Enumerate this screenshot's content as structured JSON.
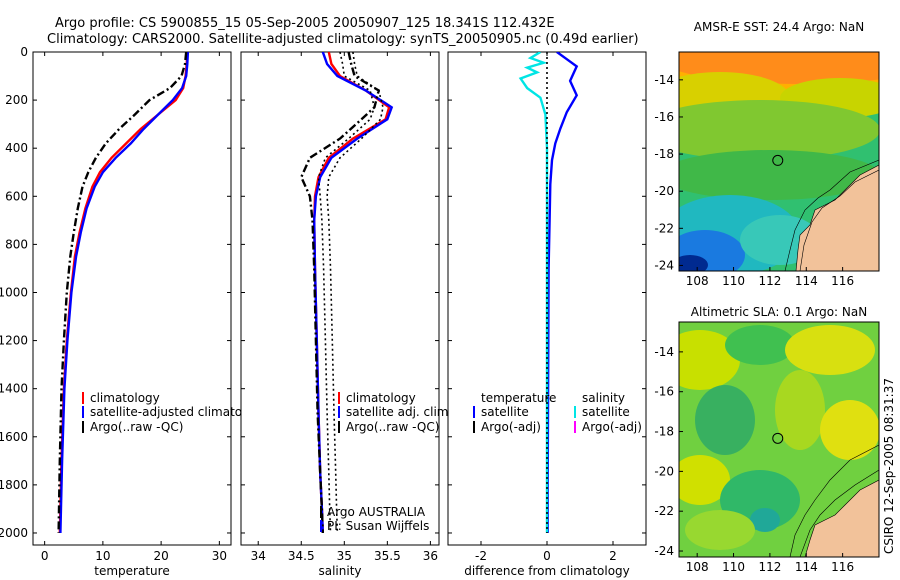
{
  "header": {
    "line1": "Argo profile: CS 5900855_15 05-Sep-2005 20050907_125 18.341S 112.432E",
    "line2": "Climatology: CARS2000. Satellite-adjusted climatology: synTS_20050905.nc (0.49d earlier)"
  },
  "colors": {
    "climatology": "#ff0000",
    "satellite": "#0000ff",
    "argo": "#000000",
    "salinity_satellite": "#00e5e5",
    "salinity_argo_adj": "#ff00ff",
    "land": "#f2c29a"
  },
  "chart_data": [
    {
      "type": "line",
      "id": "temperature_profile",
      "xlabel": "temperature",
      "ylabel": "",
      "xlim": [
        -2,
        32
      ],
      "ylim": [
        2050,
        0
      ],
      "y_reversed": true,
      "xticks": [
        "0",
        "10",
        "20",
        "30"
      ],
      "yticks": [
        "0",
        "200",
        "400",
        "600",
        "800",
        "1000",
        "1200",
        "1400",
        "1600",
        "1800",
        "2000"
      ],
      "xtick_values": [
        0,
        10,
        20,
        30
      ],
      "ytick_values": [
        0,
        200,
        400,
        600,
        800,
        1000,
        1200,
        1400,
        1600,
        1800,
        2000
      ],
      "legend": [
        "climatology",
        "satellite-adjusted climatolog",
        "Argo(..raw -QC)"
      ],
      "series": [
        {
          "name": "climatology",
          "style": "solid",
          "color": "#ff0000",
          "x": [
            24.5,
            24.4,
            24.2,
            23.8,
            22.5,
            19.5,
            16.5,
            14.0,
            11.5,
            9.5,
            8.2,
            7.0,
            6.0,
            5.2,
            4.5,
            3.8,
            3.3,
            2.9,
            2.6
          ],
          "y": [
            0,
            50,
            100,
            150,
            200,
            260,
            320,
            380,
            440,
            500,
            560,
            650,
            750,
            850,
            1000,
            1200,
            1400,
            1700,
            2000
          ]
        },
        {
          "name": "satellite-adjusted climatology",
          "style": "solid",
          "color": "#0000ff",
          "x": [
            24.6,
            24.5,
            24.3,
            23.6,
            22.0,
            19.5,
            17.0,
            14.8,
            12.2,
            10.0,
            8.6,
            7.2,
            6.2,
            5.4,
            4.6,
            3.9,
            3.4,
            3.0,
            2.7
          ],
          "y": [
            0,
            50,
            100,
            150,
            200,
            260,
            320,
            380,
            440,
            500,
            560,
            650,
            750,
            850,
            1000,
            1200,
            1400,
            1700,
            2000
          ]
        },
        {
          "name": "Argo(..raw -QC)",
          "style": "dashdot",
          "color": "#000000",
          "x": [
            24.3,
            24.1,
            23.5,
            21.5,
            18.0,
            15.5,
            12.8,
            10.5,
            8.8,
            7.5,
            6.5,
            5.7,
            5.0,
            4.4,
            3.8,
            3.3,
            2.9,
            2.6,
            2.4
          ],
          "y": [
            0,
            50,
            100,
            150,
            200,
            260,
            320,
            380,
            440,
            500,
            560,
            650,
            750,
            850,
            1000,
            1200,
            1400,
            1700,
            2000
          ]
        }
      ]
    },
    {
      "type": "line",
      "id": "salinity_profile",
      "xlabel": "salinity",
      "xlim": [
        33.8,
        36.1
      ],
      "ylim": [
        2050,
        0
      ],
      "y_reversed": true,
      "xticks": [
        "34",
        "34.5",
        "35",
        "35.5",
        "36"
      ],
      "xtick_values": [
        34,
        34.5,
        35,
        35.5,
        36
      ],
      "legend": [
        "climatology",
        "satellite adj. clim.",
        "Argo(..raw -QC)"
      ],
      "annotations": [
        "Argo AUSTRALIA",
        "PI: Susan Wijffels"
      ],
      "series": [
        {
          "name": "climatology",
          "style": "solid",
          "color": "#ff0000",
          "x": [
            34.82,
            34.85,
            34.95,
            35.25,
            35.52,
            35.48,
            35.1,
            34.82,
            34.7,
            34.66,
            34.65,
            34.66,
            34.68,
            34.7,
            34.72,
            34.74,
            34.75
          ],
          "y": [
            0,
            50,
            100,
            160,
            230,
            280,
            360,
            440,
            520,
            600,
            700,
            900,
            1200,
            1500,
            1750,
            1900,
            2000
          ]
        },
        {
          "name": "satellite adj. clim.",
          "style": "solid",
          "color": "#0000ff",
          "x": [
            34.75,
            34.8,
            34.92,
            35.25,
            35.55,
            35.5,
            35.15,
            34.85,
            34.72,
            34.67,
            34.65,
            34.66,
            34.68,
            34.7,
            34.72,
            34.74,
            34.75
          ],
          "y": [
            0,
            50,
            100,
            160,
            230,
            280,
            360,
            440,
            520,
            600,
            700,
            900,
            1200,
            1500,
            1750,
            1900,
            2000
          ]
        },
        {
          "name": "Argo(..raw -QC)",
          "style": "dashdot",
          "color": "#000000",
          "x": [
            35.05,
            35.08,
            35.12,
            35.4,
            35.35,
            35.2,
            34.95,
            34.6,
            34.5,
            34.6,
            34.63,
            34.65,
            34.67,
            34.69,
            34.72,
            34.74,
            34.75
          ],
          "y": [
            0,
            50,
            100,
            160,
            230,
            280,
            360,
            440,
            520,
            600,
            700,
            900,
            1200,
            1500,
            1750,
            1900,
            2000
          ]
        },
        {
          "name": "",
          "style": "dotted",
          "color": "#000000",
          "x": [
            35.1,
            35.12,
            35.15,
            35.4,
            35.45,
            35.42,
            35.2,
            34.95,
            34.82,
            34.8,
            34.82,
            34.84,
            34.86,
            34.88,
            34.9,
            34.91,
            34.92
          ],
          "y": [
            0,
            50,
            100,
            160,
            230,
            280,
            360,
            440,
            520,
            600,
            700,
            900,
            1200,
            1500,
            1750,
            1900,
            2000
          ]
        },
        {
          "name": "",
          "style": "dotted",
          "color": "#000000",
          "x": [
            34.95,
            34.98,
            35.0,
            35.3,
            35.35,
            35.3,
            35.05,
            34.78,
            34.7,
            34.72,
            34.74,
            34.76,
            34.78,
            34.8,
            34.82,
            34.83,
            34.84
          ],
          "y": [
            0,
            50,
            100,
            160,
            230,
            280,
            360,
            440,
            520,
            600,
            700,
            900,
            1200,
            1500,
            1750,
            1900,
            2000
          ]
        }
      ]
    },
    {
      "type": "line",
      "id": "difference_profile",
      "xlabel": "difference from climatology",
      "xlim": [
        -3,
        3
      ],
      "ylim": [
        2050,
        0
      ],
      "y_reversed": true,
      "xticks": [
        "-2",
        "0",
        "2"
      ],
      "xtick_values": [
        -2,
        0,
        2
      ],
      "legend_groups": [
        {
          "title": "temperature",
          "items": [
            "satellite",
            "Argo(-adj)"
          ]
        },
        {
          "title": "salinity",
          "items": [
            "satellite",
            "Argo(-adj)"
          ]
        }
      ],
      "series": [
        {
          "name": "temperature satellite",
          "style": "solid",
          "color": "#0000ff",
          "x": [
            0.3,
            0.6,
            0.9,
            0.8,
            0.7,
            0.9,
            0.6,
            0.4,
            0.25,
            0.15,
            0.1,
            0.08,
            0.05,
            0.04,
            0.03,
            0.02,
            0.02
          ],
          "y": [
            0,
            30,
            60,
            90,
            120,
            180,
            250,
            320,
            380,
            450,
            550,
            700,
            900,
            1200,
            1500,
            1800,
            2000
          ]
        },
        {
          "name": "salinity satellite",
          "style": "solid",
          "color": "#00e5e5",
          "x": [
            -0.2,
            -0.5,
            -0.1,
            -0.6,
            -0.3,
            -0.8,
            -0.6,
            -0.2,
            -0.05,
            0.0,
            0.0,
            0.0,
            0.0,
            0.0,
            0.0
          ],
          "y": [
            0,
            25,
            45,
            65,
            85,
            110,
            150,
            190,
            260,
            400,
            600,
            900,
            1300,
            1700,
            2000
          ]
        },
        {
          "name": "zero line",
          "style": "dotted",
          "color": "#000000",
          "x": [
            0,
            0
          ],
          "y": [
            0,
            2000
          ]
        }
      ]
    },
    {
      "type": "heatmap",
      "id": "sst_map",
      "title": "AMSR-E SST: 24.4 Argo: NaN",
      "xlim": [
        107,
        118
      ],
      "ylim": [
        -24.3,
        -12.5
      ],
      "xticks": [
        "108",
        "110",
        "112",
        "114",
        "116"
      ],
      "xtick_values": [
        108,
        110,
        112,
        114,
        116
      ],
      "yticks": [
        "-14",
        "-16",
        "-18",
        "-20",
        "-22",
        "-24"
      ],
      "ytick_values": [
        -14,
        -16,
        -18,
        -20,
        -22,
        -24
      ],
      "marker": {
        "lon": 112.432,
        "lat": -18.341
      }
    },
    {
      "type": "heatmap",
      "id": "sla_map",
      "title": "Altimetric SLA: 0.1 Argo: NaN",
      "xlim": [
        107,
        118
      ],
      "ylim": [
        -24.3,
        -12.5
      ],
      "xticks": [
        "108",
        "110",
        "112",
        "114",
        "116"
      ],
      "xtick_values": [
        108,
        110,
        112,
        114,
        116
      ],
      "yticks": [
        "-14",
        "-16",
        "-18",
        "-20",
        "-22",
        "-24"
      ],
      "ytick_values": [
        -14,
        -16,
        -18,
        -20,
        -22,
        -24
      ],
      "marker": {
        "lon": 112.432,
        "lat": -18.341
      }
    }
  ],
  "footer": {
    "stamp": "CSIRO 12-Sep-2005 08:31:37"
  }
}
